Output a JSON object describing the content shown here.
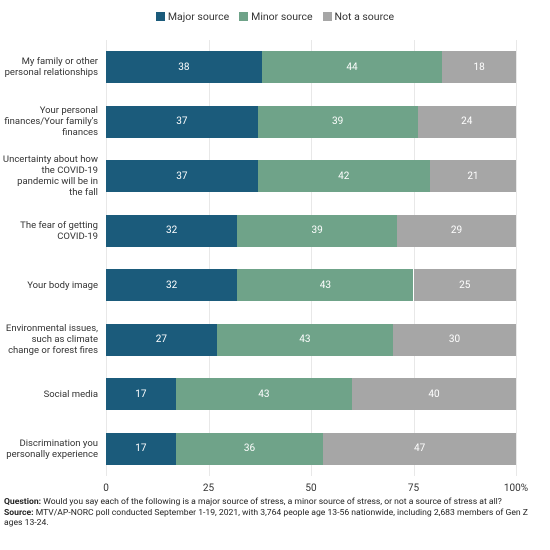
{
  "chart_data": {
    "type": "stacked-bar-horizontal",
    "categories": [
      "My family or other personal relationships",
      "Your personal finances/Your family's finances",
      "Uncertainty about how the COVID-19 pandemic will be in the fall",
      "The fear of getting COVID-19",
      "Your body image",
      "Environmental issues, such as climate change or forest fires",
      "Social media",
      "Discrimination you personally experience"
    ],
    "series": [
      {
        "name": "Major source",
        "color": "#1b5b7b",
        "values": [
          38,
          37,
          37,
          32,
          32,
          27,
          17,
          17
        ]
      },
      {
        "name": "Minor source",
        "color": "#6fa389",
        "values": [
          44,
          39,
          42,
          39,
          43,
          43,
          43,
          36
        ]
      },
      {
        "name": "Not a source",
        "color": "#a6a6a6",
        "values": [
          18,
          24,
          21,
          29,
          25,
          30,
          40,
          47
        ]
      }
    ],
    "xlim": [
      0,
      100
    ],
    "xticks": [
      0,
      25,
      50,
      75,
      {
        "value": 100,
        "label": "100%"
      }
    ],
    "grid": true,
    "notes": [
      {
        "label": "Question:",
        "text": "Would you say each of the following is a major source of stress, a minor source of stress, or not a source of stress at all?"
      },
      {
        "label": "Source:",
        "text": "MTV/AP-NORC poll conducted September 1-19, 2021, with 3,764 people age 13-56 nationwide, including 2,683 members of Gen Z ages 13-24."
      }
    ]
  }
}
